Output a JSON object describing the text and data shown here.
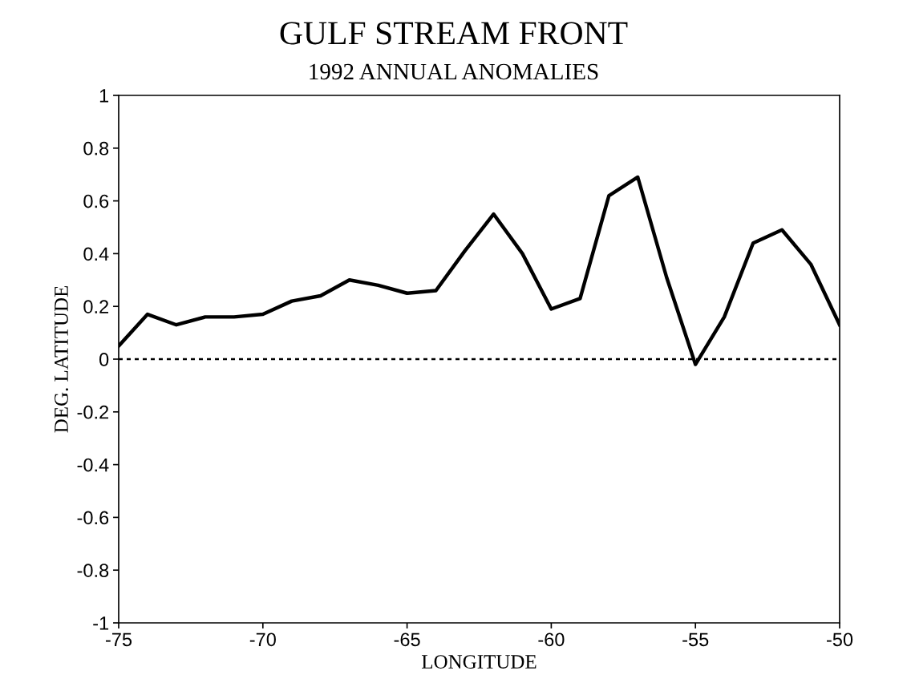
{
  "chart_data": {
    "type": "line",
    "title": "GULF STREAM FRONT",
    "subtitle": "1992 ANNUAL ANOMALIES",
    "xlabel": "LONGITUDE",
    "ylabel": "DEG. LATITUDE",
    "x": [
      -75,
      -74,
      -73,
      -72,
      -71,
      -70,
      -69,
      -68,
      -67,
      -66,
      -65,
      -64,
      -63,
      -62,
      -61,
      -60,
      -59,
      -58,
      -57,
      -56,
      -55,
      -54,
      -53,
      -52,
      -51,
      -50
    ],
    "series": [
      {
        "color": "#000000",
        "values": [
          0.05,
          0.17,
          0.13,
          0.16,
          0.16,
          0.17,
          0.22,
          0.24,
          0.3,
          0.28,
          0.25,
          0.26,
          0.41,
          0.55,
          0.4,
          0.19,
          0.23,
          0.62,
          0.69,
          0.31,
          -0.02,
          0.16,
          0.44,
          0.49,
          0.36,
          0.13
        ]
      }
    ],
    "xlim": [
      -75,
      -50
    ],
    "xticks": [
      -75,
      -70,
      -65,
      -60,
      -55,
      -50
    ],
    "ylim": [
      -1,
      1
    ],
    "yticks": [
      -1,
      -0.8,
      -0.6,
      -0.4,
      -0.2,
      0,
      0.2,
      0.4,
      0.6,
      0.8,
      1
    ],
    "ref_lines": [
      {
        "axis": "y",
        "value": 0,
        "color": "#000000",
        "line_style": "dashed"
      }
    ],
    "grid": false,
    "legend": false,
    "marker": "none",
    "line_style": "solid"
  }
}
